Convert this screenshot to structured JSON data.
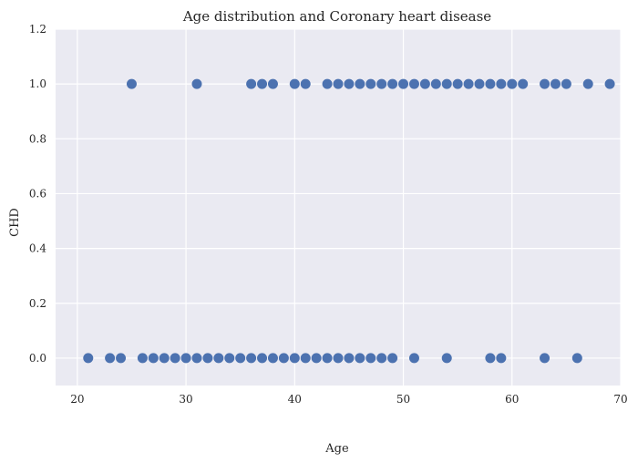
{
  "chart_data": {
    "type": "scatter",
    "title": "Age distribution and Coronary heart disease",
    "xlabel": "Age",
    "ylabel": "CHD",
    "xlim": [
      18,
      70
    ],
    "ylim": [
      -0.1,
      1.2
    ],
    "xticks": [
      "20",
      "30",
      "40",
      "50",
      "60",
      "70"
    ],
    "yticks": [
      "0.0",
      "0.2",
      "0.4",
      "0.6",
      "0.8",
      "1.0",
      "1.2"
    ],
    "grid": true,
    "colors": {
      "background": "#eaeaf2",
      "grid": "#ffffff",
      "marker": "#4c72b0"
    },
    "series": [
      {
        "x": [
          21,
          23,
          24,
          26,
          27,
          28,
          29,
          30,
          31,
          32,
          33,
          34,
          35,
          36,
          37,
          38,
          39,
          40,
          41,
          42,
          43,
          44,
          45,
          46,
          47,
          48,
          49,
          51,
          54,
          58,
          59,
          63,
          66,
          25,
          31,
          36,
          37,
          38,
          40,
          41,
          43,
          44,
          45,
          46,
          47,
          48,
          49,
          50,
          51,
          52,
          53,
          54,
          55,
          56,
          57,
          58,
          59,
          60,
          61,
          63,
          64,
          65,
          67,
          69
        ],
        "y": [
          0,
          0,
          0,
          0,
          0,
          0,
          0,
          0,
          0,
          0,
          0,
          0,
          0,
          0,
          0,
          0,
          0,
          0,
          0,
          0,
          0,
          0,
          0,
          0,
          0,
          0,
          0,
          0,
          0,
          0,
          0,
          0,
          0,
          1,
          1,
          1,
          1,
          1,
          1,
          1,
          1,
          1,
          1,
          1,
          1,
          1,
          1,
          1,
          1,
          1,
          1,
          1,
          1,
          1,
          1,
          1,
          1,
          1,
          1,
          1,
          1,
          1,
          1,
          1
        ]
      }
    ]
  }
}
